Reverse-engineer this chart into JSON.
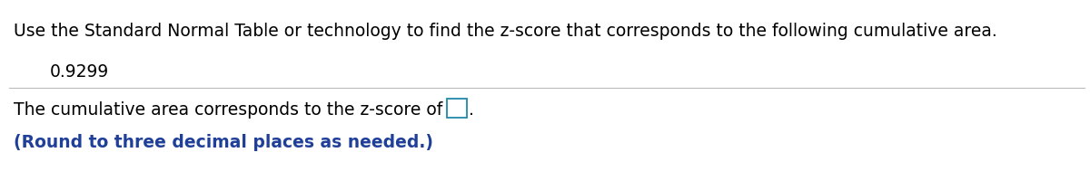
{
  "line1": "Use the Standard Normal Table or technology to find the z-score that corresponds to the following cumulative area.",
  "line2": "0.9299",
  "line3_prefix": "The cumulative area corresponds to the z-score of",
  "line4": "(Round to three decimal places as needed.)",
  "text_color_black": "#000000",
  "text_color_blue": "#1f3f99",
  "background_color": "#ffffff",
  "separator_color": "#bbbbbb",
  "font_size_line1": 13.5,
  "font_size_line2": 13.5,
  "font_size_line3": 13.5,
  "font_size_line4": 13.5,
  "box_color": "#2288aa"
}
